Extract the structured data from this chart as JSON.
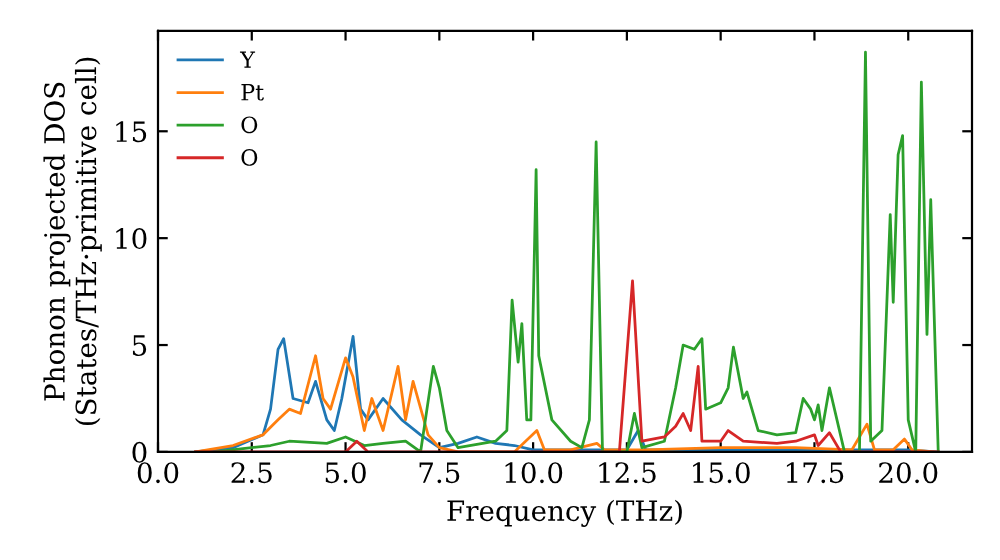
{
  "chart_data": {
    "type": "line",
    "xlabel": "Frequency (THz)",
    "ylabel": "Phonon projected DOS\n(States/THz·primitive cell)",
    "xlim": [
      0,
      21.7
    ],
    "ylim": [
      0,
      19.7
    ],
    "xticks": [
      {
        "value": 0,
        "label": "0.0"
      },
      2.5,
      {
        "value": 5,
        "label": "5.0"
      },
      7.5,
      {
        "value": 10,
        "label": "10.0"
      },
      12.5,
      {
        "value": 15,
        "label": "15.0"
      },
      17.5,
      {
        "value": 20,
        "label": "20.0"
      }
    ],
    "yticks": [
      0,
      5,
      10,
      15
    ],
    "grid": false,
    "legend": "top left",
    "marker": "none",
    "line_style": "solid",
    "series": [
      {
        "name": "Y",
        "color": "#1f77b4",
        "x": [
          1.0,
          2.0,
          2.8,
          3.0,
          3.2,
          3.35,
          3.6,
          4.0,
          4.2,
          4.5,
          4.7,
          4.9,
          5.2,
          5.4,
          5.6,
          6.0,
          6.5,
          7.0,
          7.5,
          8.0,
          8.5,
          9.0,
          9.5,
          10.0,
          11.0,
          12.5,
          12.8,
          13.0,
          14.0,
          16.0,
          18.0,
          20.0,
          20.8
        ],
        "values": [
          0,
          0.2,
          0.8,
          2.0,
          4.8,
          5.3,
          2.5,
          2.3,
          3.3,
          1.5,
          1.0,
          2.5,
          5.4,
          2.0,
          1.5,
          2.5,
          1.5,
          0.8,
          0.2,
          0.4,
          0.7,
          0.4,
          0.3,
          0.1,
          0.1,
          0.1,
          1.0,
          0.1,
          0.1,
          0.1,
          0.1,
          0.1,
          0
        ]
      },
      {
        "name": "Pt",
        "color": "#ff7f0e",
        "x": [
          1.0,
          2.0,
          2.8,
          3.2,
          3.5,
          3.8,
          4.2,
          4.4,
          4.6,
          5.0,
          5.2,
          5.5,
          5.7,
          6.0,
          6.4,
          6.6,
          6.8,
          7.2,
          7.5,
          8.0,
          9.5,
          10.1,
          10.3,
          11.0,
          11.7,
          11.9,
          13.0,
          15.0,
          17.0,
          18.5,
          18.9,
          19.1,
          19.6,
          19.9,
          20.1,
          20.7
        ],
        "values": [
          0,
          0.3,
          0.8,
          1.5,
          2.0,
          1.8,
          4.5,
          2.5,
          2.0,
          4.4,
          3.5,
          1.0,
          2.5,
          1.0,
          4.0,
          1.5,
          3.3,
          0.8,
          0.2,
          0,
          0,
          1.0,
          0.1,
          0.1,
          0.4,
          0.1,
          0.1,
          0.2,
          0.2,
          0.1,
          1.3,
          0.1,
          0.1,
          0.6,
          0.1,
          0
        ]
      },
      {
        "name": "O",
        "color": "#2ca02c",
        "x": [
          1.5,
          3.0,
          3.5,
          4.5,
          5.0,
          5.5,
          6.0,
          6.6,
          7.0,
          7.34,
          7.5,
          7.7,
          8.0,
          9.0,
          9.3,
          9.44,
          9.6,
          9.7,
          9.83,
          9.94,
          10.08,
          10.15,
          10.5,
          11.0,
          11.3,
          11.5,
          11.68,
          11.85,
          12.5,
          12.7,
          12.9,
          13.5,
          13.8,
          14.0,
          14.3,
          14.5,
          14.6,
          15.0,
          15.2,
          15.34,
          15.6,
          15.7,
          16.0,
          16.5,
          17.0,
          17.2,
          17.4,
          17.5,
          17.6,
          17.7,
          17.9,
          18.3,
          18.7,
          18.86,
          19.0,
          19.3,
          19.52,
          19.6,
          19.73,
          19.85,
          20.0,
          20.2,
          20.35,
          20.5,
          20.6,
          20.8
        ],
        "values": [
          0,
          0.3,
          0.5,
          0.4,
          0.7,
          0.3,
          0.4,
          0.5,
          0,
          4.0,
          3.0,
          1.0,
          0.2,
          0.5,
          1.0,
          7.1,
          4.2,
          6.0,
          1.5,
          1.5,
          13.2,
          4.5,
          1.5,
          0.5,
          0.2,
          1.5,
          14.5,
          0,
          0,
          1.8,
          0.2,
          0.5,
          3.0,
          5.0,
          4.8,
          5.3,
          2.0,
          2.3,
          3.0,
          4.9,
          2.5,
          2.8,
          1.0,
          0.8,
          0.9,
          2.5,
          2.0,
          1.5,
          2.2,
          1.0,
          3.0,
          0,
          0,
          18.7,
          0.5,
          1.0,
          11.1,
          7.0,
          13.9,
          14.8,
          1.5,
          0,
          17.3,
          5.5,
          11.8,
          0
        ]
      },
      {
        "name": "O",
        "color": "#d62728",
        "x": [
          1.0,
          5.0,
          5.3,
          5.6,
          12.3,
          12.65,
          12.9,
          13.5,
          13.8,
          14.0,
          14.2,
          14.4,
          14.5,
          15.0,
          15.2,
          15.6,
          16.5,
          17.0,
          17.5,
          17.6,
          17.9,
          18.2,
          20.8
        ],
        "values": [
          0,
          0,
          0.5,
          0,
          0,
          8.0,
          0.5,
          0.7,
          1.2,
          1.8,
          1.0,
          4.0,
          0.5,
          0.5,
          1.0,
          0.5,
          0.4,
          0.5,
          0.8,
          0.3,
          0.9,
          0,
          0
        ]
      }
    ]
  }
}
